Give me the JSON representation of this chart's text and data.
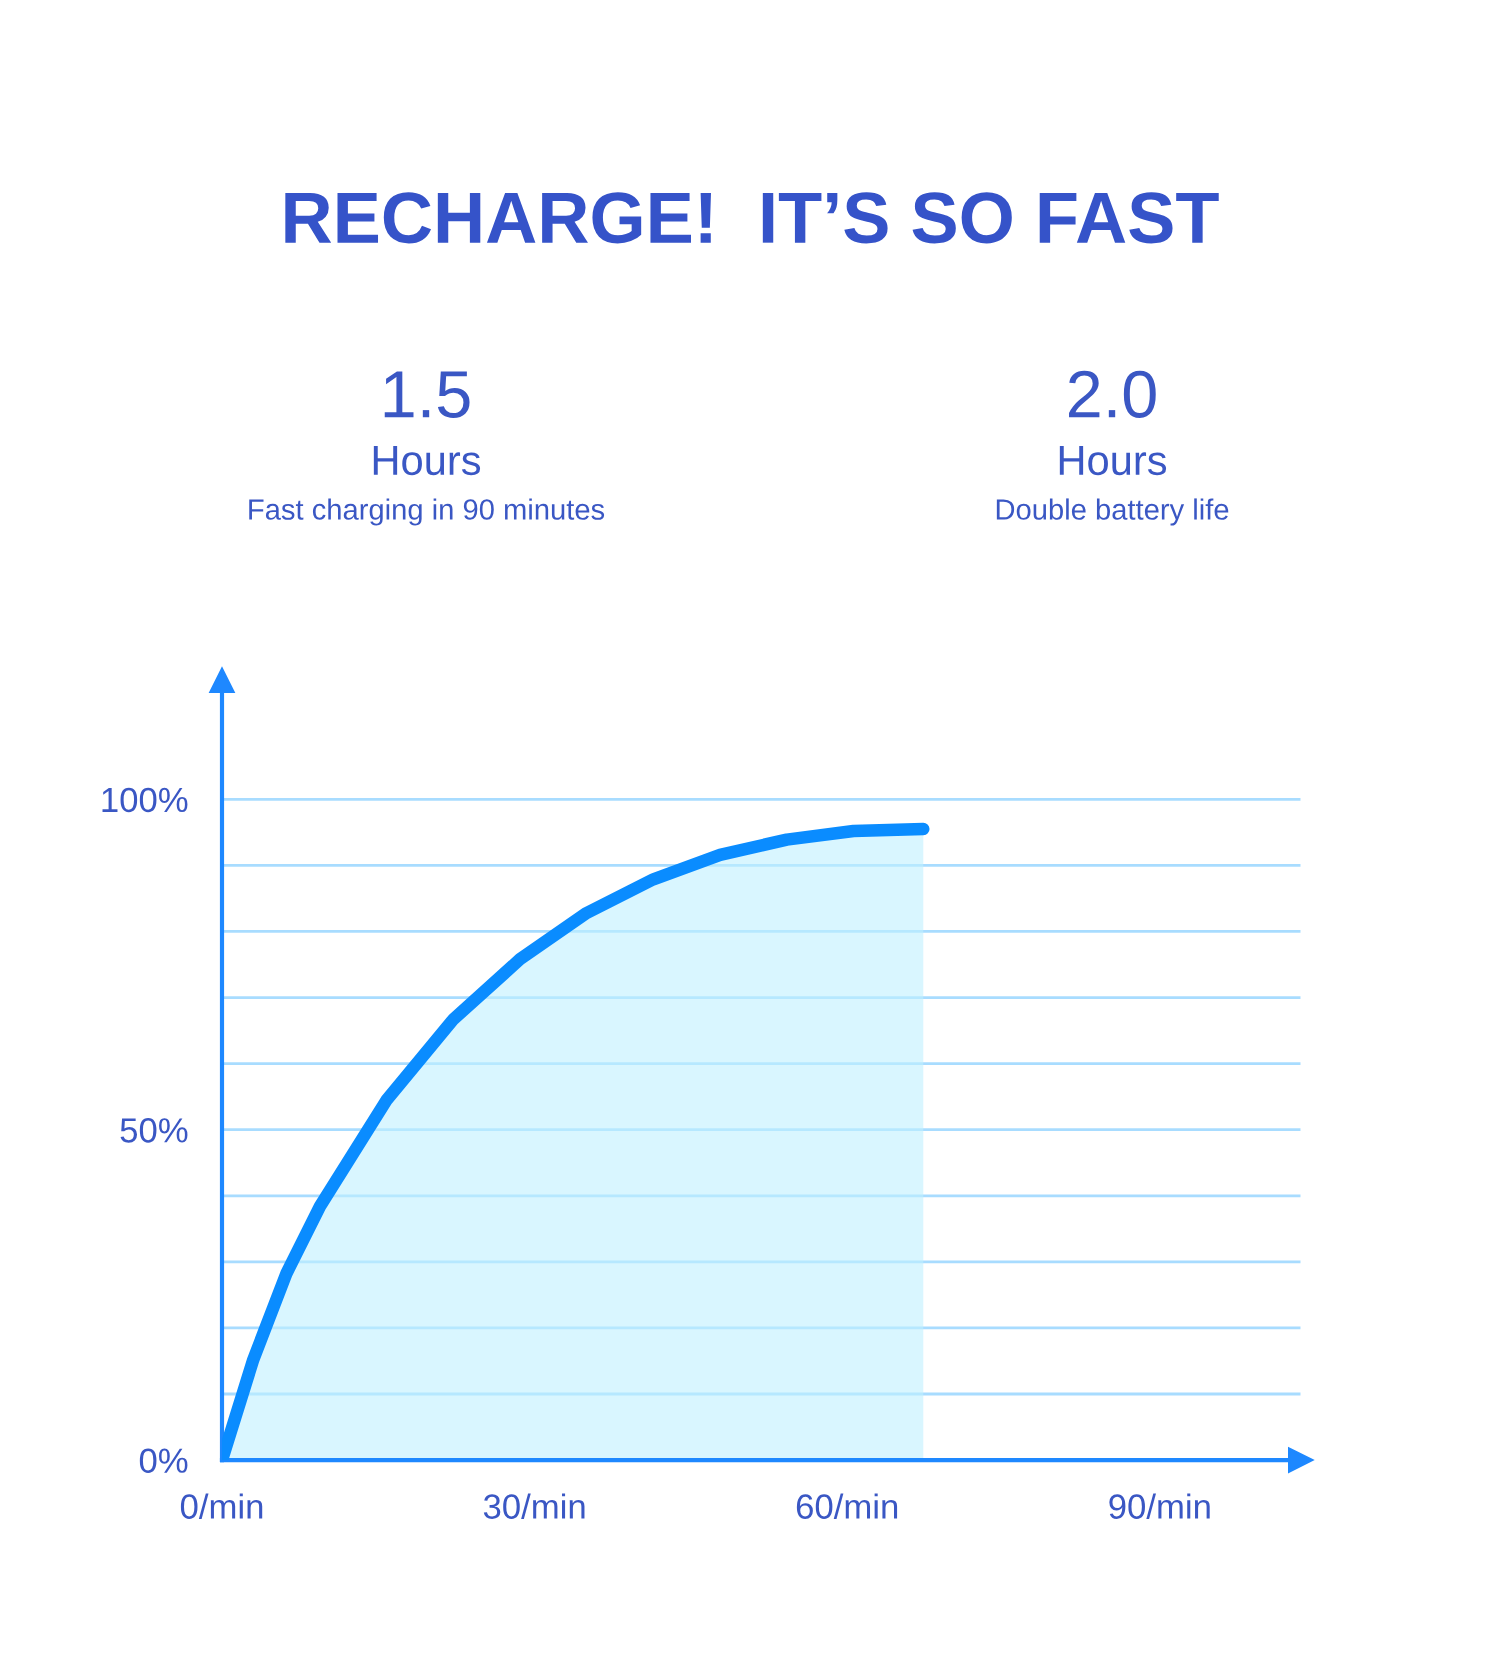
{
  "chart_data": {
    "type": "area",
    "title": "RECHARGE!  IT’S SO FAST",
    "annotations": [
      "1.5",
      "Hours",
      "Fast charging in 90 minutes",
      "2.0",
      "Hours",
      "Double battery life"
    ],
    "series": [
      {
        "color": "#0a8cff",
        "x": [
          0,
          3.0,
          6.2,
          9.4,
          15.8,
          22.2,
          28.6,
          35.0,
          41.4,
          47.8,
          54.2,
          60.6,
          67.3
        ],
        "values": [
          0,
          15.2,
          28.3,
          38.4,
          54.5,
          66.7,
          75.8,
          82.8,
          87.9,
          91.6,
          93.9,
          95.2,
          95.5
        ]
      }
    ],
    "xlim": [
      0,
      103.5
    ],
    "ylim": [
      0,
      118
    ],
    "xticks": [
      {
        "value": 0,
        "label": "0/min"
      },
      {
        "value": 30,
        "label": "30/min"
      },
      {
        "value": 60,
        "label": "60/min"
      },
      {
        "value": 90,
        "label": "90/min"
      }
    ],
    "yticks": [
      {
        "value": 0,
        "label": "0%"
      },
      {
        "value": 10,
        "label": null
      },
      {
        "value": 20,
        "label": null
      },
      {
        "value": 30,
        "label": null
      },
      {
        "value": 40,
        "label": null
      },
      {
        "value": 50,
        "label": "50%"
      },
      {
        "value": 60,
        "label": null
      },
      {
        "value": 70,
        "label": null
      },
      {
        "value": 80,
        "label": null
      },
      {
        "value": 90,
        "label": null
      },
      {
        "value": 100,
        "label": "100%"
      }
    ],
    "grid": "y",
    "marker": "none",
    "line_style": "solid"
  }
}
